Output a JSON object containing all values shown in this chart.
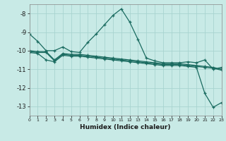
{
  "xlabel": "Humidex (Indice chaleur)",
  "background_color": "#c8eae6",
  "grid_color": "#a8d4d0",
  "line_color": "#1a6b60",
  "xlim": [
    0,
    23
  ],
  "ylim": [
    -13.5,
    -7.5
  ],
  "yticks": [
    -8,
    -9,
    -10,
    -11,
    -12,
    -13
  ],
  "xticks": [
    0,
    1,
    2,
    3,
    4,
    5,
    6,
    7,
    8,
    9,
    10,
    11,
    12,
    13,
    14,
    15,
    16,
    17,
    18,
    19,
    20,
    21,
    22,
    23
  ],
  "line1_x": [
    0,
    1,
    2,
    3,
    4,
    5,
    6,
    7,
    8,
    9,
    10,
    11,
    12,
    13,
    14,
    15,
    16,
    17,
    18,
    19,
    20,
    21,
    22,
    23
  ],
  "line1_y": [
    -9.1,
    -9.5,
    -10.0,
    -10.0,
    -9.8,
    -10.05,
    -10.1,
    -9.55,
    -9.1,
    -8.6,
    -8.1,
    -7.75,
    -8.45,
    -9.4,
    -10.4,
    -10.55,
    -10.65,
    -10.65,
    -10.65,
    -10.6,
    -10.65,
    -10.5,
    -11.0,
    -10.9
  ],
  "line2_x": [
    0,
    1,
    2,
    3,
    4,
    5,
    6,
    7,
    8,
    9,
    10,
    11,
    12,
    13,
    14,
    15,
    16,
    17,
    18,
    19,
    20,
    21,
    22,
    23
  ],
  "line2_y": [
    -10.0,
    -10.05,
    -10.05,
    -10.5,
    -10.15,
    -10.2,
    -10.2,
    -10.25,
    -10.3,
    -10.35,
    -10.4,
    -10.45,
    -10.5,
    -10.55,
    -10.6,
    -10.65,
    -10.7,
    -10.7,
    -10.7,
    -10.75,
    -10.8,
    -10.85,
    -10.9,
    -11.0
  ],
  "line3_x": [
    0,
    1,
    2,
    3,
    4,
    5,
    6,
    7,
    8,
    9,
    10,
    11,
    12,
    13,
    14,
    15,
    16,
    17,
    18,
    19,
    20,
    21,
    22,
    23
  ],
  "line3_y": [
    -10.05,
    -10.1,
    -10.1,
    -10.55,
    -10.2,
    -10.25,
    -10.25,
    -10.3,
    -10.35,
    -10.4,
    -10.45,
    -10.5,
    -10.55,
    -10.6,
    -10.65,
    -10.7,
    -10.75,
    -10.75,
    -10.75,
    -10.8,
    -10.85,
    -10.9,
    -10.95,
    -11.05
  ],
  "line4_x": [
    0,
    1,
    2,
    3,
    4,
    5,
    6,
    7,
    8,
    9,
    10,
    11,
    12,
    13,
    14,
    15,
    16,
    17,
    18,
    19,
    20,
    21,
    22,
    23
  ],
  "line4_y": [
    -10.1,
    -10.15,
    -10.5,
    -10.6,
    -10.25,
    -10.3,
    -10.3,
    -10.35,
    -10.4,
    -10.45,
    -10.5,
    -10.55,
    -10.6,
    -10.65,
    -10.7,
    -10.75,
    -10.8,
    -10.8,
    -10.8,
    -10.85,
    -10.9,
    -12.3,
    -13.05,
    -12.8
  ]
}
